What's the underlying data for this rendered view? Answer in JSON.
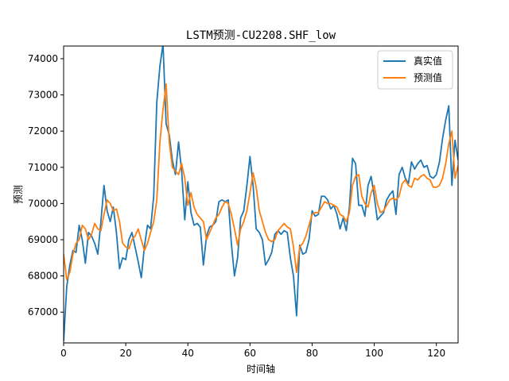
{
  "chart_data": {
    "type": "line",
    "title": "LSTM预测-CU2208.SHF_low",
    "xlabel": "时间轴",
    "ylabel": "预测",
    "xlim": [
      0,
      127
    ],
    "ylim": [
      66150,
      74350
    ],
    "x_ticks": [
      0,
      20,
      40,
      60,
      80,
      100,
      120
    ],
    "y_ticks": [
      67000,
      68000,
      69000,
      70000,
      71000,
      72000,
      73000,
      74000
    ],
    "legend_position": "upper-right",
    "series": [
      {
        "name": "真实值",
        "color": "#1f77b4",
        "values": [
          66200,
          67700,
          68300,
          68700,
          68650,
          69400,
          69000,
          68350,
          69200,
          69100,
          68900,
          68600,
          69500,
          70500,
          69800,
          69500,
          69900,
          69200,
          68200,
          68500,
          68450,
          69000,
          69200,
          68800,
          68400,
          67950,
          68800,
          69400,
          69300,
          70200,
          72800,
          73800,
          74400,
          72200,
          71900,
          71200,
          70800,
          71700,
          70900,
          69550,
          70600,
          69750,
          69400,
          69450,
          69350,
          68300,
          69100,
          69350,
          69400,
          69500,
          70050,
          70100,
          70050,
          70100,
          68900,
          68000,
          68500,
          69600,
          69800,
          70500,
          71300,
          70500,
          69300,
          69200,
          69000,
          68300,
          68450,
          68650,
          69150,
          69250,
          69150,
          69250,
          69200,
          68500,
          68000,
          66900,
          68850,
          68600,
          68650,
          69000,
          69800,
          69650,
          69700,
          70200,
          70200,
          70100,
          69850,
          69950,
          69700,
          69300,
          69600,
          69250,
          69900,
          71250,
          71100,
          69950,
          69950,
          69650,
          70500,
          70750,
          70200,
          69550,
          69650,
          69750,
          70100,
          70250,
          70350,
          69700,
          70800,
          71000,
          70700,
          70550,
          71150,
          70950,
          71100,
          71200,
          71000,
          71050,
          70750,
          70700,
          70800,
          71150,
          71800,
          72300,
          72700,
          70500,
          71750,
          71200
        ]
      },
      {
        "name": "预测值",
        "color": "#ff7f0e",
        "values": [
          68600,
          67900,
          68100,
          68600,
          68900,
          69000,
          69400,
          69300,
          69000,
          69150,
          69450,
          69300,
          69250,
          69700,
          70100,
          70000,
          69800,
          69850,
          69500,
          68900,
          68800,
          68750,
          69000,
          69100,
          69300,
          69000,
          68700,
          68900,
          69200,
          69500,
          70100,
          71700,
          72600,
          73300,
          71700,
          71000,
          70900,
          70800,
          71100,
          70700,
          69950,
          70300,
          69900,
          69700,
          69600,
          69500,
          69000,
          69200,
          69400,
          69600,
          69700,
          69900,
          70050,
          70000,
          69700,
          69300,
          68850,
          69300,
          69500,
          69800,
          70300,
          70850,
          70450,
          69800,
          69500,
          69200,
          69000,
          68950,
          69000,
          69250,
          69350,
          69450,
          69350,
          69300,
          68800,
          68100,
          68800,
          68900,
          69100,
          69400,
          69700,
          69750,
          69750,
          69900,
          70050,
          70000,
          70000,
          69950,
          69900,
          69700,
          69650,
          69500,
          69750,
          70500,
          70750,
          70800,
          70200,
          70000,
          69900,
          70300,
          70500,
          70000,
          69750,
          69800,
          69950,
          70100,
          70150,
          70100,
          70200,
          70550,
          70650,
          70500,
          70450,
          70700,
          70650,
          70750,
          70800,
          70700,
          70650,
          70450,
          70450,
          70500,
          70700,
          71100,
          71650,
          72000,
          70700,
          71050
        ]
      }
    ]
  }
}
